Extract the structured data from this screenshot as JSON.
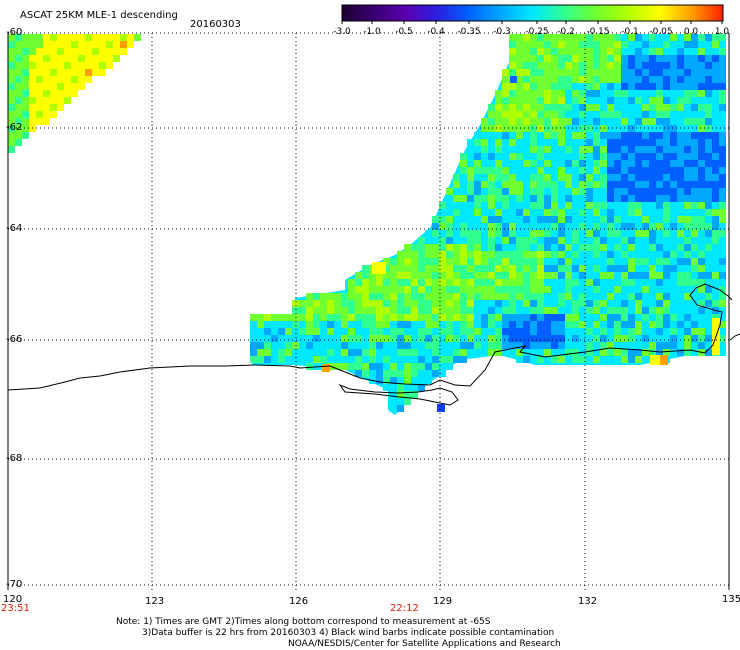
{
  "header": {
    "title": "ASCAT 25KM MLE-1 descending",
    "date": "20160303"
  },
  "colorbar": {
    "labels": [
      "-3.0",
      "-1.0",
      "-0.5",
      "-0.4",
      "-0.35",
      "-0.3",
      "-0.25",
      "-0.2",
      "-0.15",
      "-0.1",
      "-0.05",
      "0.0",
      "1.0"
    ],
    "colors": [
      "#1a0030",
      "#3a0070",
      "#5a00b0",
      "#2a20e0",
      "#0060ff",
      "#00a8ff",
      "#00e8ff",
      "#30ff90",
      "#70ff30",
      "#b0ff00",
      "#ffff00",
      "#ffa000",
      "#ff2000"
    ]
  },
  "axes": {
    "lat_labels": [
      "-60",
      "-62",
      "-64",
      "-66",
      "-68",
      "-70"
    ],
    "lon_labels": [
      "120",
      "123",
      "126",
      "129",
      "132",
      "135"
    ]
  },
  "times": {
    "left": "23:51",
    "mid": "22:12"
  },
  "notes": {
    "line1": "Note: 1) Times are GMT 2)Times along bottom correspond to measurement at -65S",
    "line2": "3)Data buffer is 22 hrs from 20160303 4) Black wind barbs indicate possible contamination",
    "line3": "NOAA/NESDIS/Center for Satellite Applications and Research"
  },
  "colors": {
    "grid": "#000000",
    "time_label": "#cc2200"
  }
}
